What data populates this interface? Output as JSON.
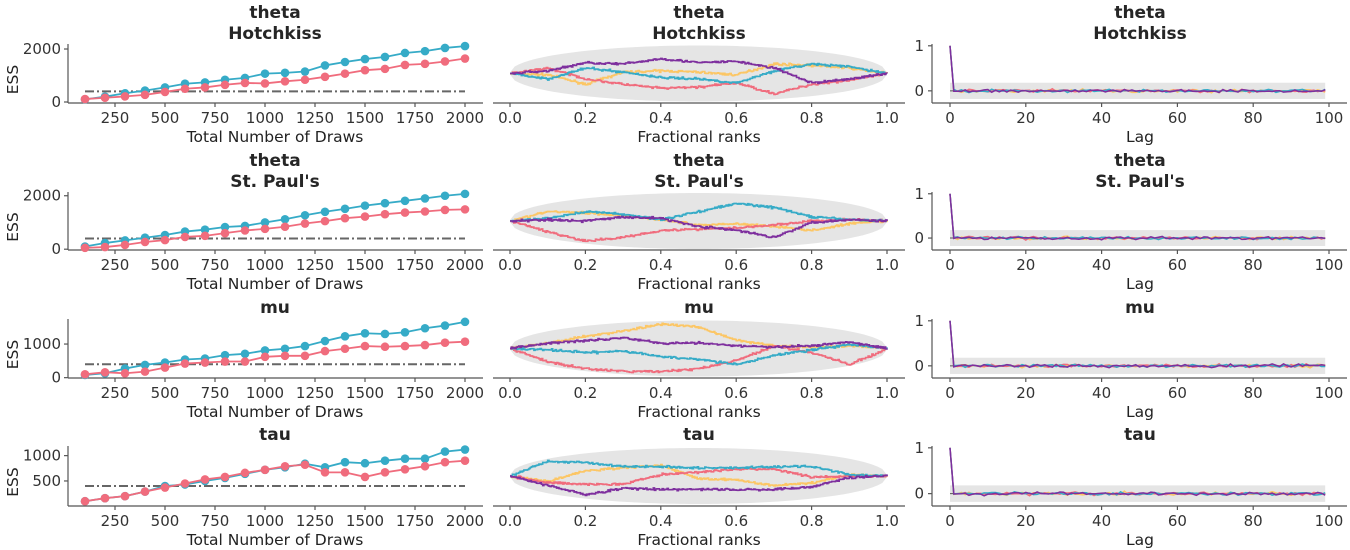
{
  "colors": {
    "chain_blue": "#36abc7",
    "chain_red": "#f06c7d",
    "chain_yellow": "#fcc665",
    "chain_purple": "#7e2f9e",
    "reference": "#666666",
    "band": "#e5e5e5"
  },
  "chart_data": [
    {
      "panel": "ess",
      "type": "line",
      "title": [
        "theta",
        "Hotchkiss"
      ],
      "xlabel": "Total Number of Draws",
      "ylabel": "ESS",
      "x": [
        100,
        200,
        300,
        400,
        500,
        600,
        700,
        800,
        900,
        1000,
        1100,
        1200,
        1300,
        1400,
        1500,
        1600,
        1700,
        1800,
        1900,
        2000
      ],
      "series": [
        {
          "color": "#36abc7",
          "values": [
            100,
            200,
            330,
            430,
            550,
            690,
            740,
            840,
            910,
            1070,
            1100,
            1150,
            1380,
            1510,
            1620,
            1700,
            1850,
            1920,
            2040,
            2110
          ]
        },
        {
          "color": "#f06c7d",
          "values": [
            110,
            160,
            210,
            270,
            380,
            500,
            550,
            650,
            720,
            700,
            780,
            840,
            950,
            1070,
            1200,
            1250,
            1400,
            1440,
            1530,
            1640
          ]
        }
      ],
      "reference_line": 400,
      "xticks": [
        250,
        500,
        750,
        1000,
        1250,
        1500,
        1750,
        2000
      ],
      "yticks": [
        0,
        2000
      ],
      "ylim": [
        -38,
        2189
      ]
    },
    {
      "panel": "rank",
      "type": "line",
      "title": [
        "theta",
        "Hotchkiss"
      ],
      "xlabel": "Fractional ranks",
      "xticks": [
        "0.0",
        "0.2",
        "0.4",
        "0.6",
        "0.8",
        "1.0"
      ],
      "x": [
        0,
        0.1,
        0.2,
        0.3,
        0.4,
        0.5,
        0.6,
        0.7,
        0.8,
        0.9,
        1
      ],
      "series": [
        {
          "color": "#fcc665",
          "values": [
            0,
            -0.05,
            -0.4,
            0.05,
            0.1,
            0.05,
            -0.05,
            0.35,
            0.3,
            0.2,
            0
          ]
        },
        {
          "color": "#f06c7d",
          "values": [
            0,
            0.2,
            -0.2,
            -0.4,
            -0.55,
            -0.5,
            -0.35,
            -0.75,
            -0.4,
            -0.25,
            0
          ]
        },
        {
          "color": "#36abc7",
          "values": [
            0,
            -0.2,
            0.2,
            0.05,
            -0.15,
            -0.2,
            -0.35,
            0.1,
            0.35,
            0.25,
            0
          ]
        },
        {
          "color": "#7e2f9e",
          "values": [
            0,
            0.1,
            0.4,
            0.35,
            0.55,
            0.4,
            0.45,
            0.2,
            -0.35,
            -0.2,
            0
          ]
        }
      ]
    },
    {
      "panel": "acf",
      "type": "line",
      "title": [
        "theta",
        "Hotchkiss"
      ],
      "xlabel": "Lag",
      "xticks": [
        0,
        20,
        40,
        60,
        80,
        100
      ],
      "yticks": [
        0,
        1
      ],
      "ylim": [
        -0.27,
        1.04
      ],
      "lags": 100,
      "lag0": 1,
      "band": 0.18,
      "noise": 0.035
    },
    {
      "panel": "ess",
      "type": "line",
      "title": [
        "theta",
        "St. Paul's"
      ],
      "xlabel": "Total Number of Draws",
      "ylabel": "ESS",
      "x": [
        100,
        200,
        300,
        400,
        500,
        600,
        700,
        800,
        900,
        1000,
        1100,
        1200,
        1300,
        1400,
        1500,
        1600,
        1700,
        1800,
        1900,
        2000
      ],
      "series": [
        {
          "color": "#36abc7",
          "values": [
            100,
            230,
            330,
            430,
            530,
            660,
            730,
            830,
            870,
            1000,
            1120,
            1270,
            1400,
            1510,
            1630,
            1720,
            1810,
            1900,
            2000,
            2070
          ]
        },
        {
          "color": "#f06c7d",
          "values": [
            50,
            80,
            160,
            270,
            340,
            460,
            500,
            600,
            700,
            760,
            840,
            960,
            1050,
            1160,
            1220,
            1310,
            1370,
            1410,
            1470,
            1490
          ]
        }
      ],
      "reference_line": 400,
      "xticks": [
        250,
        500,
        750,
        1000,
        1250,
        1500,
        1750,
        2000
      ],
      "yticks": [
        0,
        2000
      ],
      "ylim": [
        -30,
        2140
      ]
    },
    {
      "panel": "rank",
      "type": "line",
      "title": [
        "theta",
        "St. Paul's"
      ],
      "xlabel": "Fractional ranks",
      "xticks": [
        "0.0",
        "0.2",
        "0.4",
        "0.6",
        "0.8",
        "1.0"
      ],
      "x": [
        0,
        0.1,
        0.2,
        0.3,
        0.4,
        0.5,
        0.6,
        0.7,
        0.8,
        0.9,
        1
      ],
      "series": [
        {
          "color": "#fcc665",
          "values": [
            0,
            0.35,
            0.3,
            0.2,
            0.05,
            -0.15,
            -0.1,
            -0.2,
            -0.35,
            -0.1,
            0
          ]
        },
        {
          "color": "#f06c7d",
          "values": [
            0,
            -0.4,
            -0.75,
            -0.6,
            -0.35,
            -0.3,
            -0.25,
            -0.15,
            0,
            0.05,
            0
          ]
        },
        {
          "color": "#36abc7",
          "values": [
            0,
            0.1,
            0.35,
            0.25,
            0.05,
            0.35,
            0.65,
            0.5,
            0.15,
            0.05,
            0
          ]
        },
        {
          "color": "#7e2f9e",
          "values": [
            0,
            0.05,
            0,
            0.15,
            0.1,
            -0.2,
            -0.35,
            -0.6,
            -0.05,
            0.05,
            0
          ]
        }
      ]
    },
    {
      "panel": "acf",
      "type": "line",
      "title": [
        "theta",
        "St. Paul's"
      ],
      "xlabel": "Lag",
      "xticks": [
        0,
        20,
        40,
        60,
        80,
        100
      ],
      "yticks": [
        0,
        1
      ],
      "ylim": [
        -0.27,
        1.04
      ],
      "lags": 100,
      "lag0": 1,
      "band": 0.18,
      "noise": 0.035
    },
    {
      "panel": "ess",
      "type": "line",
      "title": [
        "mu"
      ],
      "xlabel": "Total Number of Draws",
      "ylabel": "ESS",
      "x": [
        100,
        200,
        300,
        400,
        500,
        600,
        700,
        800,
        900,
        1000,
        1100,
        1200,
        1300,
        1400,
        1500,
        1600,
        1700,
        1800,
        1900,
        2000
      ],
      "series": [
        {
          "color": "#36abc7",
          "values": [
            80,
            130,
            270,
            380,
            450,
            540,
            570,
            670,
            710,
            810,
            860,
            940,
            1090,
            1230,
            1320,
            1300,
            1350,
            1470,
            1550,
            1660
          ]
        },
        {
          "color": "#f06c7d",
          "values": [
            100,
            160,
            130,
            180,
            300,
            420,
            450,
            480,
            480,
            620,
            650,
            650,
            790,
            860,
            940,
            920,
            940,
            970,
            1040,
            1070
          ]
        }
      ],
      "reference_line": 400,
      "xticks": [
        250,
        500,
        750,
        1000,
        1250,
        1500,
        1750,
        2000
      ],
      "yticks": [
        0,
        1000
      ],
      "ylim": [
        -10,
        1745
      ]
    },
    {
      "panel": "rank",
      "type": "line",
      "title": [
        "mu"
      ],
      "xlabel": "Fractional ranks",
      "xticks": [
        "0.0",
        "0.2",
        "0.4",
        "0.6",
        "0.8",
        "1.0"
      ],
      "x": [
        0,
        0.1,
        0.2,
        0.3,
        0.4,
        0.5,
        0.6,
        0.7,
        0.8,
        0.9,
        1
      ],
      "series": [
        {
          "color": "#fcc665",
          "values": [
            0,
            0.2,
            0.45,
            0.65,
            0.9,
            0.8,
            0.3,
            0.1,
            0.05,
            0.1,
            0
          ]
        },
        {
          "color": "#f06c7d",
          "values": [
            0,
            -0.5,
            -0.75,
            -0.85,
            -0.85,
            -0.75,
            -0.45,
            0.1,
            -0.15,
            -0.6,
            0
          ]
        },
        {
          "color": "#36abc7",
          "values": [
            0,
            -0.05,
            -0.15,
            -0.1,
            -0.3,
            -0.4,
            -0.6,
            -0.25,
            -0.05,
            0.15,
            0
          ]
        },
        {
          "color": "#7e2f9e",
          "values": [
            0,
            0.2,
            0.3,
            0.4,
            0.2,
            0.2,
            0.1,
            0.05,
            0.1,
            0.25,
            0
          ]
        }
      ]
    },
    {
      "panel": "acf",
      "type": "line",
      "title": [
        "mu"
      ],
      "xlabel": "Lag",
      "xticks": [
        0,
        20,
        40,
        60,
        80,
        100
      ],
      "yticks": [
        0,
        1
      ],
      "ylim": [
        -0.27,
        1.04
      ],
      "lags": 100,
      "lag0": 1,
      "band": 0.18,
      "noise": 0.035
    },
    {
      "panel": "ess",
      "type": "line",
      "title": [
        "tau"
      ],
      "xlabel": "Total Number of Draws",
      "ylabel": "ESS",
      "x": [
        100,
        200,
        300,
        400,
        500,
        600,
        700,
        800,
        900,
        1000,
        1100,
        1200,
        1300,
        1400,
        1500,
        1600,
        1700,
        1800,
        1900,
        2000
      ],
      "series": [
        {
          "color": "#36abc7",
          "values": [
            100,
            160,
            200,
            290,
            400,
            430,
            500,
            560,
            640,
            720,
            770,
            840,
            770,
            870,
            850,
            900,
            940,
            940,
            1080,
            1120
          ]
        },
        {
          "color": "#f06c7d",
          "values": [
            100,
            160,
            200,
            290,
            370,
            450,
            530,
            580,
            660,
            720,
            790,
            820,
            670,
            670,
            580,
            670,
            730,
            790,
            870,
            900
          ]
        }
      ],
      "reference_line": 400,
      "xticks": [
        250,
        500,
        750,
        1000,
        1250,
        1500,
        1750,
        2000
      ],
      "yticks": [
        500,
        1000
      ],
      "ylim": [
        6,
        1190
      ]
    },
    {
      "panel": "rank",
      "type": "line",
      "title": [
        "tau"
      ],
      "xlabel": "Fractional ranks",
      "xticks": [
        "0.0",
        "0.2",
        "0.4",
        "0.6",
        "0.8",
        "1.0"
      ],
      "x": [
        0,
        0.1,
        0.2,
        0.3,
        0.4,
        0.5,
        0.6,
        0.7,
        0.8,
        0.9,
        1
      ],
      "series": [
        {
          "color": "#fcc665",
          "values": [
            0,
            -0.2,
            0.2,
            0.3,
            0.4,
            -0.1,
            -0.15,
            -0.35,
            -0.25,
            0.05,
            0
          ]
        },
        {
          "color": "#f06c7d",
          "values": [
            0,
            -0.25,
            -0.3,
            -0.3,
            0.05,
            0.15,
            0.25,
            0.25,
            -0.05,
            0,
            0
          ]
        },
        {
          "color": "#36abc7",
          "values": [
            0,
            0.55,
            0.5,
            0.35,
            0.35,
            0.3,
            0.3,
            0.35,
            0.35,
            0.05,
            0
          ]
        },
        {
          "color": "#7e2f9e",
          "values": [
            0,
            -0.35,
            -0.7,
            -0.45,
            -0.5,
            -0.5,
            -0.5,
            -0.5,
            -0.4,
            -0.05,
            0
          ]
        }
      ]
    },
    {
      "panel": "acf",
      "type": "line",
      "title": [
        "tau"
      ],
      "xlabel": "Lag",
      "xticks": [
        0,
        20,
        40,
        60,
        80,
        100
      ],
      "yticks": [
        0,
        1
      ],
      "ylim": [
        -0.27,
        1.04
      ],
      "lags": 100,
      "lag0": 1,
      "band": 0.18,
      "noise": 0.035
    }
  ]
}
